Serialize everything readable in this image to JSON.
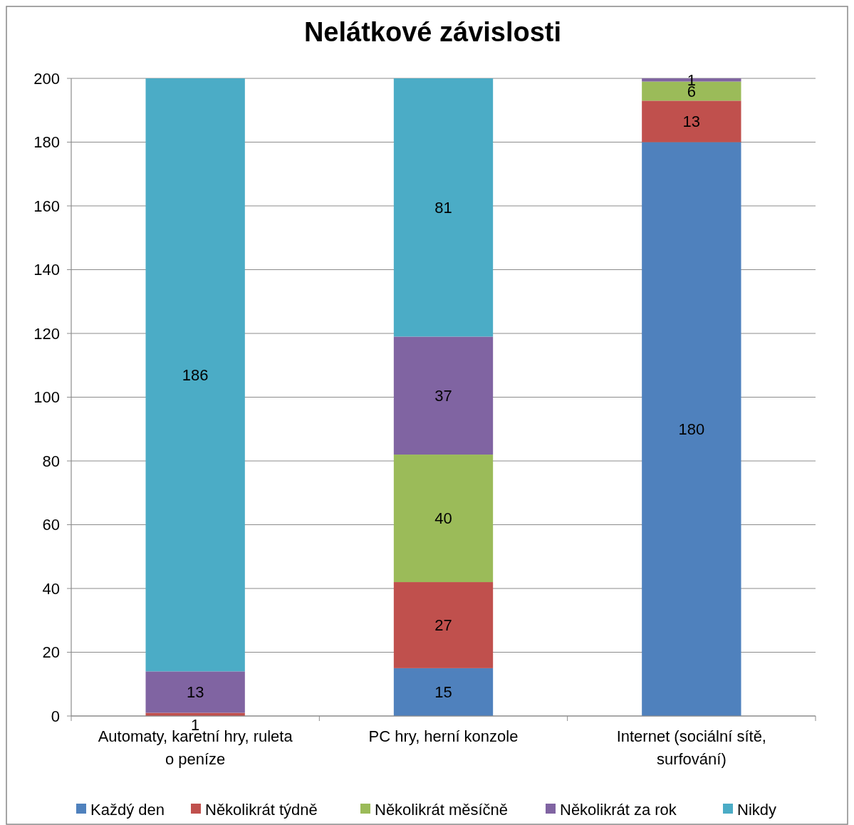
{
  "chart_data": {
    "type": "bar",
    "title": "Nelátkové závislosti",
    "categories": [
      "Automaty, karetní hry, ruleta o peníze",
      "PC hry, herní konzole",
      "Internet (sociální sítě, surfování)"
    ],
    "stacked": true,
    "series": [
      {
        "name": "Každý den",
        "color": "#4f81bd",
        "values": [
          null,
          15,
          180
        ]
      },
      {
        "name": "Několikrát týdně",
        "color": "#c0504d",
        "values": [
          1,
          27,
          13
        ]
      },
      {
        "name": "Několikrát měsíčně",
        "color": "#9bbb59",
        "values": [
          null,
          40,
          6
        ]
      },
      {
        "name": "Několikrát za rok",
        "color": "#8064a2",
        "values": [
          13,
          37,
          1
        ]
      },
      {
        "name": "Nikdy",
        "color": "#4bacc6",
        "values": [
          186,
          81,
          null
        ]
      }
    ],
    "ylim": [
      0,
      200
    ],
    "yticks": [
      0,
      20,
      40,
      60,
      80,
      100,
      120,
      140,
      160,
      180,
      200
    ],
    "grid": "y",
    "legend": "bottom",
    "data_labels": true
  }
}
